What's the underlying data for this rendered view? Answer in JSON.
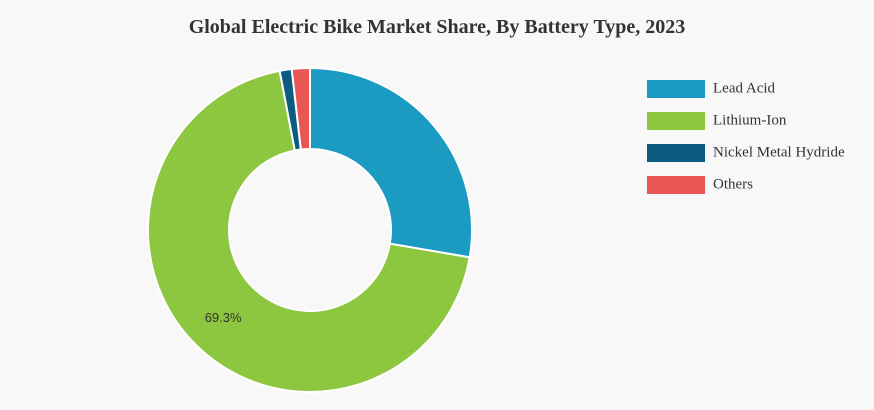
{
  "chart_data": {
    "type": "donut",
    "title": "Global Electric Bike Market Share, By Battery Type, 2023",
    "categories": [
      "Lead Acid",
      "Lithium-Ion",
      "Nickel Metal Hydride",
      "Others"
    ],
    "values": [
      27.7,
      69.3,
      1.2,
      1.8
    ],
    "value_labels": [
      null,
      "69.3%",
      null,
      null
    ],
    "colors": [
      "#1b9bc2",
      "#8dc63f",
      "#0b5c80",
      "#e85656"
    ],
    "legend": "right"
  }
}
